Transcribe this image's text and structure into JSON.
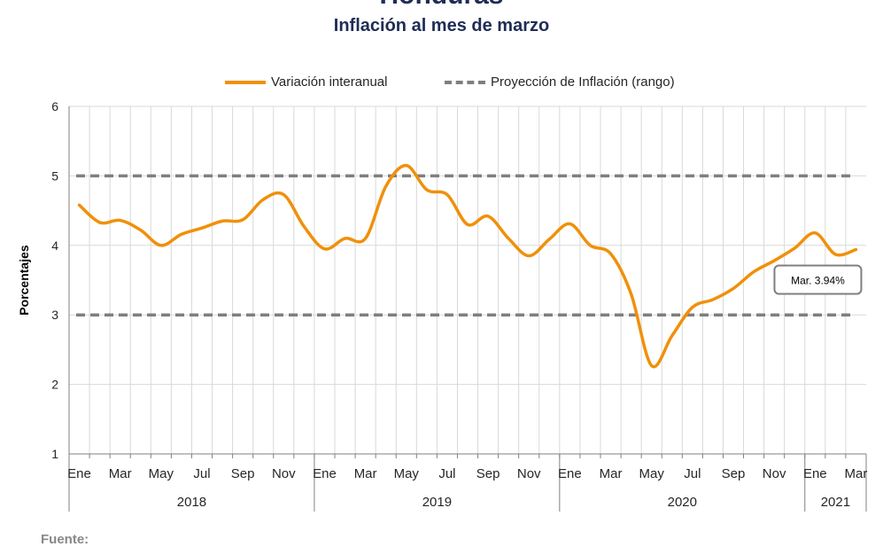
{
  "header": {
    "title": "Honduras",
    "subtitle": "Inflación al mes de marzo"
  },
  "footer": {
    "source_label": "Fuente:"
  },
  "colors": {
    "series": "#f0900a",
    "projection": "#7f7f7f",
    "grid": "#d9d9d9",
    "axis": "#808080"
  },
  "chart_data": {
    "type": "line",
    "title": "Inflación al mes de marzo",
    "ylabel": "Porcentajes",
    "xlabel": "",
    "ylim": [
      1,
      6
    ],
    "yticks": [
      "1",
      "2",
      "3",
      "4",
      "5",
      "6"
    ],
    "grid": true,
    "legend_position": "top",
    "month_labels": [
      "Ene",
      "Mar",
      "May",
      "Jul",
      "Sep",
      "Nov",
      "Ene",
      "Mar",
      "May",
      "Jul",
      "Sep",
      "Nov",
      "Ene",
      "Mar",
      "May",
      "Jul",
      "Sep",
      "Nov",
      "Ene",
      "Mar"
    ],
    "years": [
      "2018",
      "2019",
      "2020",
      "2021"
    ],
    "x": [
      "2018-01",
      "2018-02",
      "2018-03",
      "2018-04",
      "2018-05",
      "2018-06",
      "2018-07",
      "2018-08",
      "2018-09",
      "2018-10",
      "2018-11",
      "2018-12",
      "2019-01",
      "2019-02",
      "2019-03",
      "2019-04",
      "2019-05",
      "2019-06",
      "2019-07",
      "2019-08",
      "2019-09",
      "2019-10",
      "2019-11",
      "2019-12",
      "2020-01",
      "2020-02",
      "2020-03",
      "2020-04",
      "2020-05",
      "2020-06",
      "2020-07",
      "2020-08",
      "2020-09",
      "2020-10",
      "2020-11",
      "2020-12",
      "2021-01",
      "2021-02",
      "2021-03"
    ],
    "series": [
      {
        "name": "Variación interanual",
        "values": [
          4.58,
          4.33,
          4.36,
          4.22,
          4.0,
          4.16,
          4.25,
          4.35,
          4.37,
          4.66,
          4.73,
          4.27,
          3.95,
          4.1,
          4.1,
          4.85,
          5.15,
          4.8,
          4.73,
          4.3,
          4.42,
          4.1,
          3.85,
          4.09,
          4.31,
          4.0,
          3.88,
          3.3,
          2.27,
          2.7,
          3.11,
          3.22,
          3.38,
          3.62,
          3.78,
          3.96,
          4.18,
          3.87,
          3.94
        ]
      },
      {
        "name": "Proyección de Inflación (rango)",
        "style": "dashed",
        "upper": 5,
        "lower": 3
      }
    ],
    "annotation": {
      "text": "Mar. 3.94%",
      "x": "2021-03",
      "y": 3.94
    }
  }
}
